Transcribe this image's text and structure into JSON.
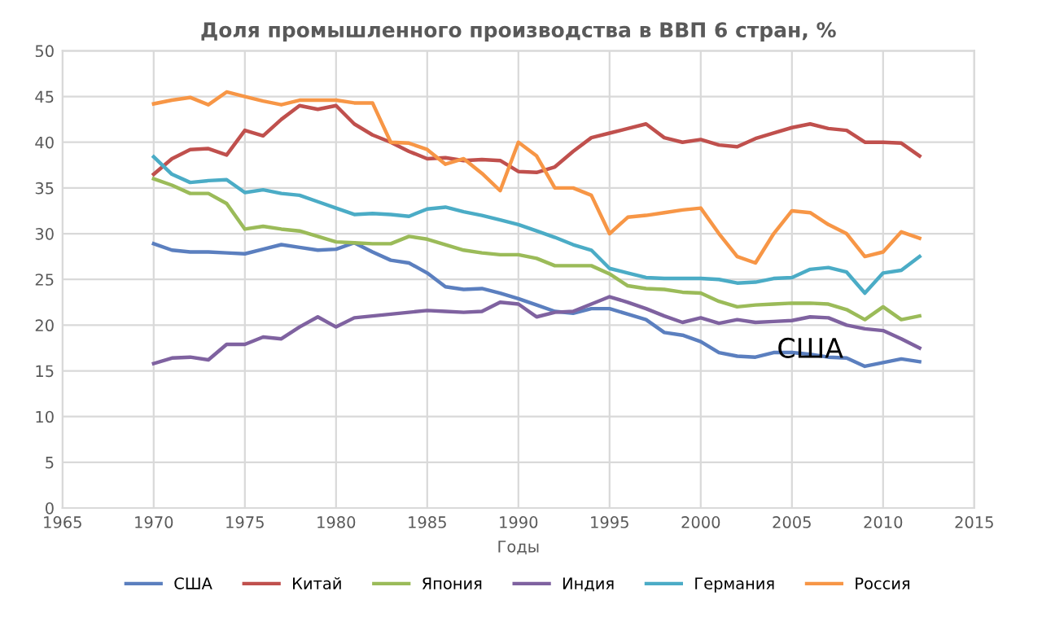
{
  "chart_data": {
    "type": "line",
    "title": "Доля промышленного производства в ВВП 6 стран, %",
    "xlabel": "Годы",
    "x": [
      1970,
      1971,
      1972,
      1973,
      1974,
      1975,
      1976,
      1977,
      1978,
      1979,
      1980,
      1981,
      1982,
      1983,
      1984,
      1985,
      1986,
      1987,
      1988,
      1989,
      1990,
      1991,
      1992,
      1993,
      1994,
      1995,
      1996,
      1997,
      1998,
      1999,
      2000,
      2001,
      2002,
      2003,
      2004,
      2005,
      2006,
      2007,
      2008,
      2009,
      2010,
      2011,
      2012
    ],
    "series": [
      {
        "name": "США",
        "color": "#5b7fbf",
        "values": [
          28.9,
          28.2,
          28.0,
          28.0,
          27.9,
          27.8,
          28.3,
          28.8,
          28.5,
          28.2,
          28.3,
          29.0,
          28.0,
          27.1,
          26.8,
          25.7,
          24.2,
          23.9,
          24.0,
          23.5,
          22.9,
          22.2,
          21.5,
          21.3,
          21.8,
          21.8,
          21.2,
          20.6,
          19.2,
          18.9,
          18.2,
          17.0,
          16.6,
          16.5,
          17.0,
          17.0,
          16.8,
          16.5,
          16.4,
          15.5,
          15.9,
          16.3,
          16.0
        ]
      },
      {
        "name": "Китай",
        "color": "#c0504d",
        "values": [
          36.5,
          38.2,
          39.2,
          39.3,
          38.6,
          41.3,
          40.7,
          42.5,
          44.0,
          43.6,
          44.0,
          42.0,
          40.8,
          40.0,
          39.0,
          38.2,
          38.3,
          38.0,
          38.1,
          38.0,
          36.8,
          36.7,
          37.3,
          39.0,
          40.5,
          41.0,
          41.5,
          42.0,
          40.5,
          40.0,
          40.3,
          39.7,
          39.5,
          40.4,
          41.0,
          41.6,
          42.0,
          41.5,
          41.3,
          40.0,
          40.0,
          39.9,
          38.5
        ]
      },
      {
        "name": "Япония",
        "color": "#9bbb59",
        "values": [
          36.0,
          35.3,
          34.4,
          34.4,
          33.3,
          30.5,
          30.8,
          30.5,
          30.3,
          29.7,
          29.1,
          29.0,
          28.9,
          28.9,
          29.7,
          29.4,
          28.8,
          28.2,
          27.9,
          27.7,
          27.7,
          27.3,
          26.5,
          26.5,
          26.5,
          25.6,
          24.3,
          24.0,
          23.9,
          23.6,
          23.5,
          22.6,
          22.0,
          22.2,
          22.3,
          22.4,
          22.4,
          22.3,
          21.7,
          20.6,
          22.0,
          20.6,
          21.0
        ]
      },
      {
        "name": "Индия",
        "color": "#7f62a0",
        "values": [
          15.8,
          16.4,
          16.5,
          16.2,
          17.9,
          17.9,
          18.7,
          18.5,
          19.8,
          20.9,
          19.8,
          20.8,
          21.0,
          21.2,
          21.4,
          21.6,
          21.5,
          21.4,
          21.5,
          22.5,
          22.3,
          20.9,
          21.4,
          21.5,
          22.3,
          23.1,
          22.5,
          21.8,
          21.0,
          20.3,
          20.8,
          20.2,
          20.6,
          20.3,
          20.4,
          20.5,
          20.9,
          20.8,
          20.0,
          19.6,
          19.4,
          18.5,
          17.5
        ]
      },
      {
        "name": "Германия",
        "color": "#4bacc6",
        "values": [
          38.4,
          36.5,
          35.6,
          35.8,
          35.9,
          34.5,
          34.8,
          34.4,
          34.2,
          33.5,
          32.8,
          32.1,
          32.2,
          32.1,
          31.9,
          32.7,
          32.9,
          32.4,
          32.0,
          31.5,
          31.0,
          30.3,
          29.6,
          28.8,
          28.2,
          26.2,
          25.7,
          25.2,
          25.1,
          25.1,
          25.1,
          25.0,
          24.6,
          24.7,
          25.1,
          25.2,
          26.1,
          26.3,
          25.8,
          23.5,
          25.7,
          26.0,
          27.5
        ]
      },
      {
        "name": "Россия",
        "color": "#f79646",
        "values": [
          44.2,
          44.6,
          44.9,
          44.1,
          45.5,
          45.0,
          44.5,
          44.1,
          44.6,
          44.6,
          44.6,
          44.3,
          44.3,
          40.0,
          39.9,
          39.2,
          37.6,
          38.2,
          36.6,
          34.7,
          40.0,
          38.5,
          35.0,
          35.0,
          34.2,
          30.0,
          31.8,
          32.0,
          32.3,
          32.6,
          32.8,
          30.0,
          27.5,
          26.8,
          30.0,
          32.5,
          32.3,
          31.0,
          30.0,
          27.5,
          28.0,
          30.2,
          29.5
        ]
      }
    ],
    "annotations": [
      "США"
    ],
    "xlim": [
      1965,
      2015
    ],
    "xticks": [
      1965,
      1970,
      1975,
      1980,
      1985,
      1990,
      1995,
      2000,
      2005,
      2010,
      2015
    ],
    "ylim": [
      0,
      50
    ],
    "yticks": [
      0,
      5,
      10,
      15,
      20,
      25,
      30,
      35,
      40,
      45,
      50
    ],
    "grid": true,
    "legend": "bottom",
    "marker": "none",
    "line_style": "solid"
  }
}
